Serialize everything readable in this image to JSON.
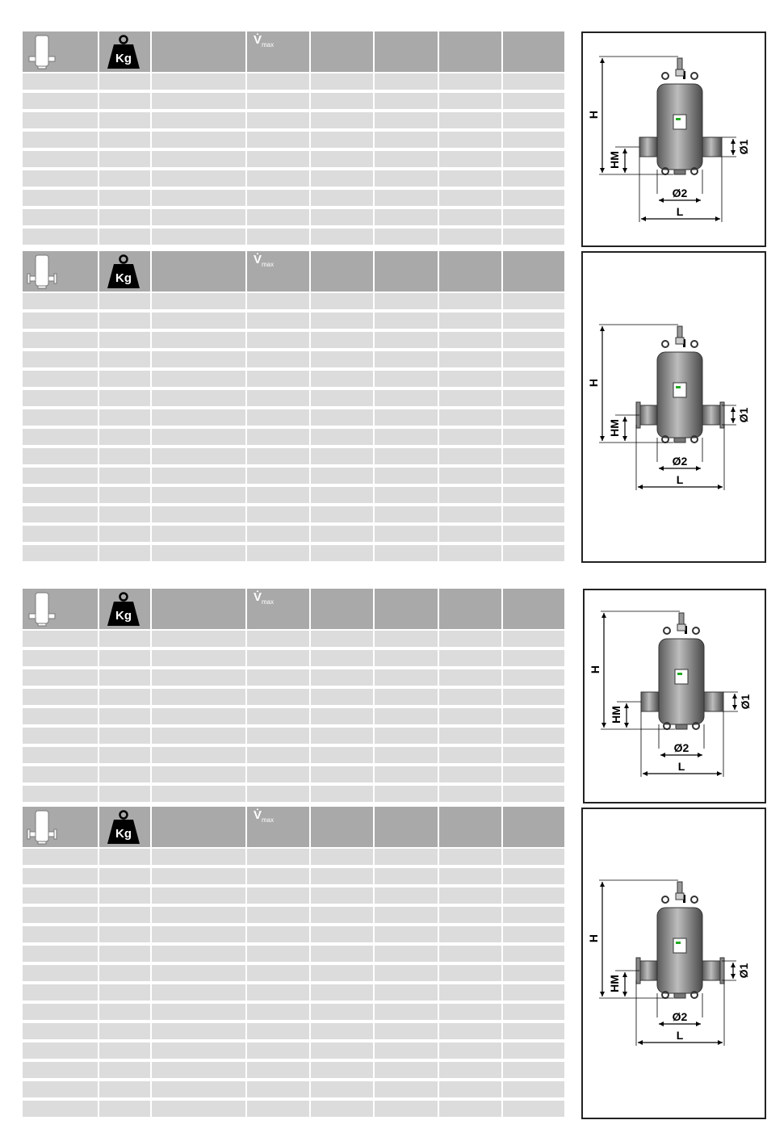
{
  "colors": {
    "header_bg": "#a9a9a9",
    "row_bg": "#dcdcdc",
    "frame_border": "#222222"
  },
  "header": {
    "weight_icon_label": "Kg",
    "flow_symbol": "V̇",
    "flow_subscript": "max"
  },
  "tables": [
    {
      "icon": "separator-threaded-icon",
      "rows": 9
    },
    {
      "icon": "separator-flanged-icon",
      "rows": 14
    },
    {
      "icon": "separator-threaded-icon",
      "rows": 9
    },
    {
      "icon": "separator-flanged-icon",
      "rows": 14
    }
  ],
  "drawing": {
    "height_label": "H",
    "inlet_height_label": "HM",
    "pipe_diameter_label": "Ø1",
    "vessel_diameter_label": "Ø2",
    "length_label": "L"
  }
}
